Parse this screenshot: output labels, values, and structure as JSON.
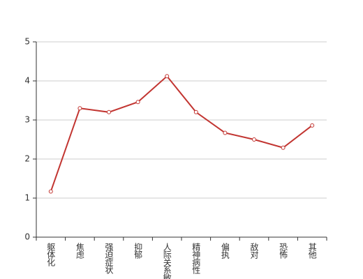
{
  "chart_data": {
    "type": "line",
    "categories": [
      "躯体化",
      "焦虑",
      "强迫症状",
      "抑郁",
      "人际关系敏感",
      "精神病性",
      "偏执",
      "敌对",
      "恐怖",
      "其他"
    ],
    "values": [
      1.17,
      3.3,
      3.2,
      3.46,
      4.12,
      3.2,
      2.67,
      2.5,
      2.29,
      2.86
    ],
    "color": "#c23531",
    "ylim": [
      0,
      5
    ],
    "yticks": [
      0,
      1,
      2,
      3,
      4,
      5
    ],
    "grid": true
  }
}
